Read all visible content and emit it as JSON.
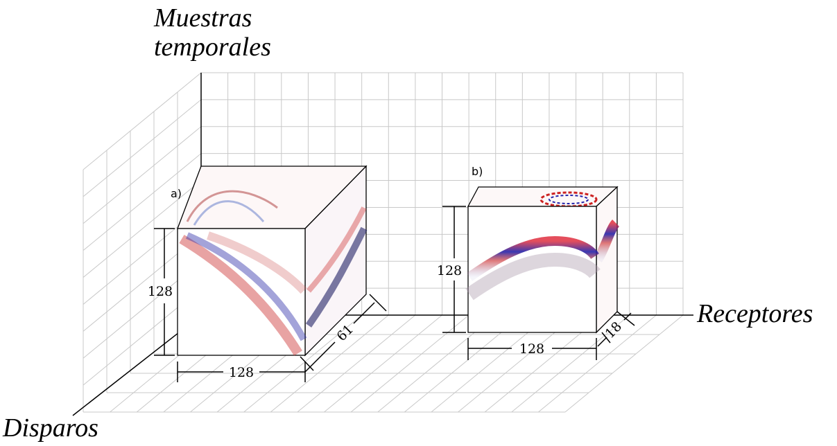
{
  "axes": {
    "vertical": [
      "Muestras",
      "temporales"
    ],
    "right": "Receptores",
    "depth": "Disparos"
  },
  "panels": [
    {
      "label": "a)",
      "height": 128,
      "width": 128,
      "depth": 61
    },
    {
      "label": "b)",
      "height": 128,
      "width": 128,
      "depth": 18
    }
  ]
}
